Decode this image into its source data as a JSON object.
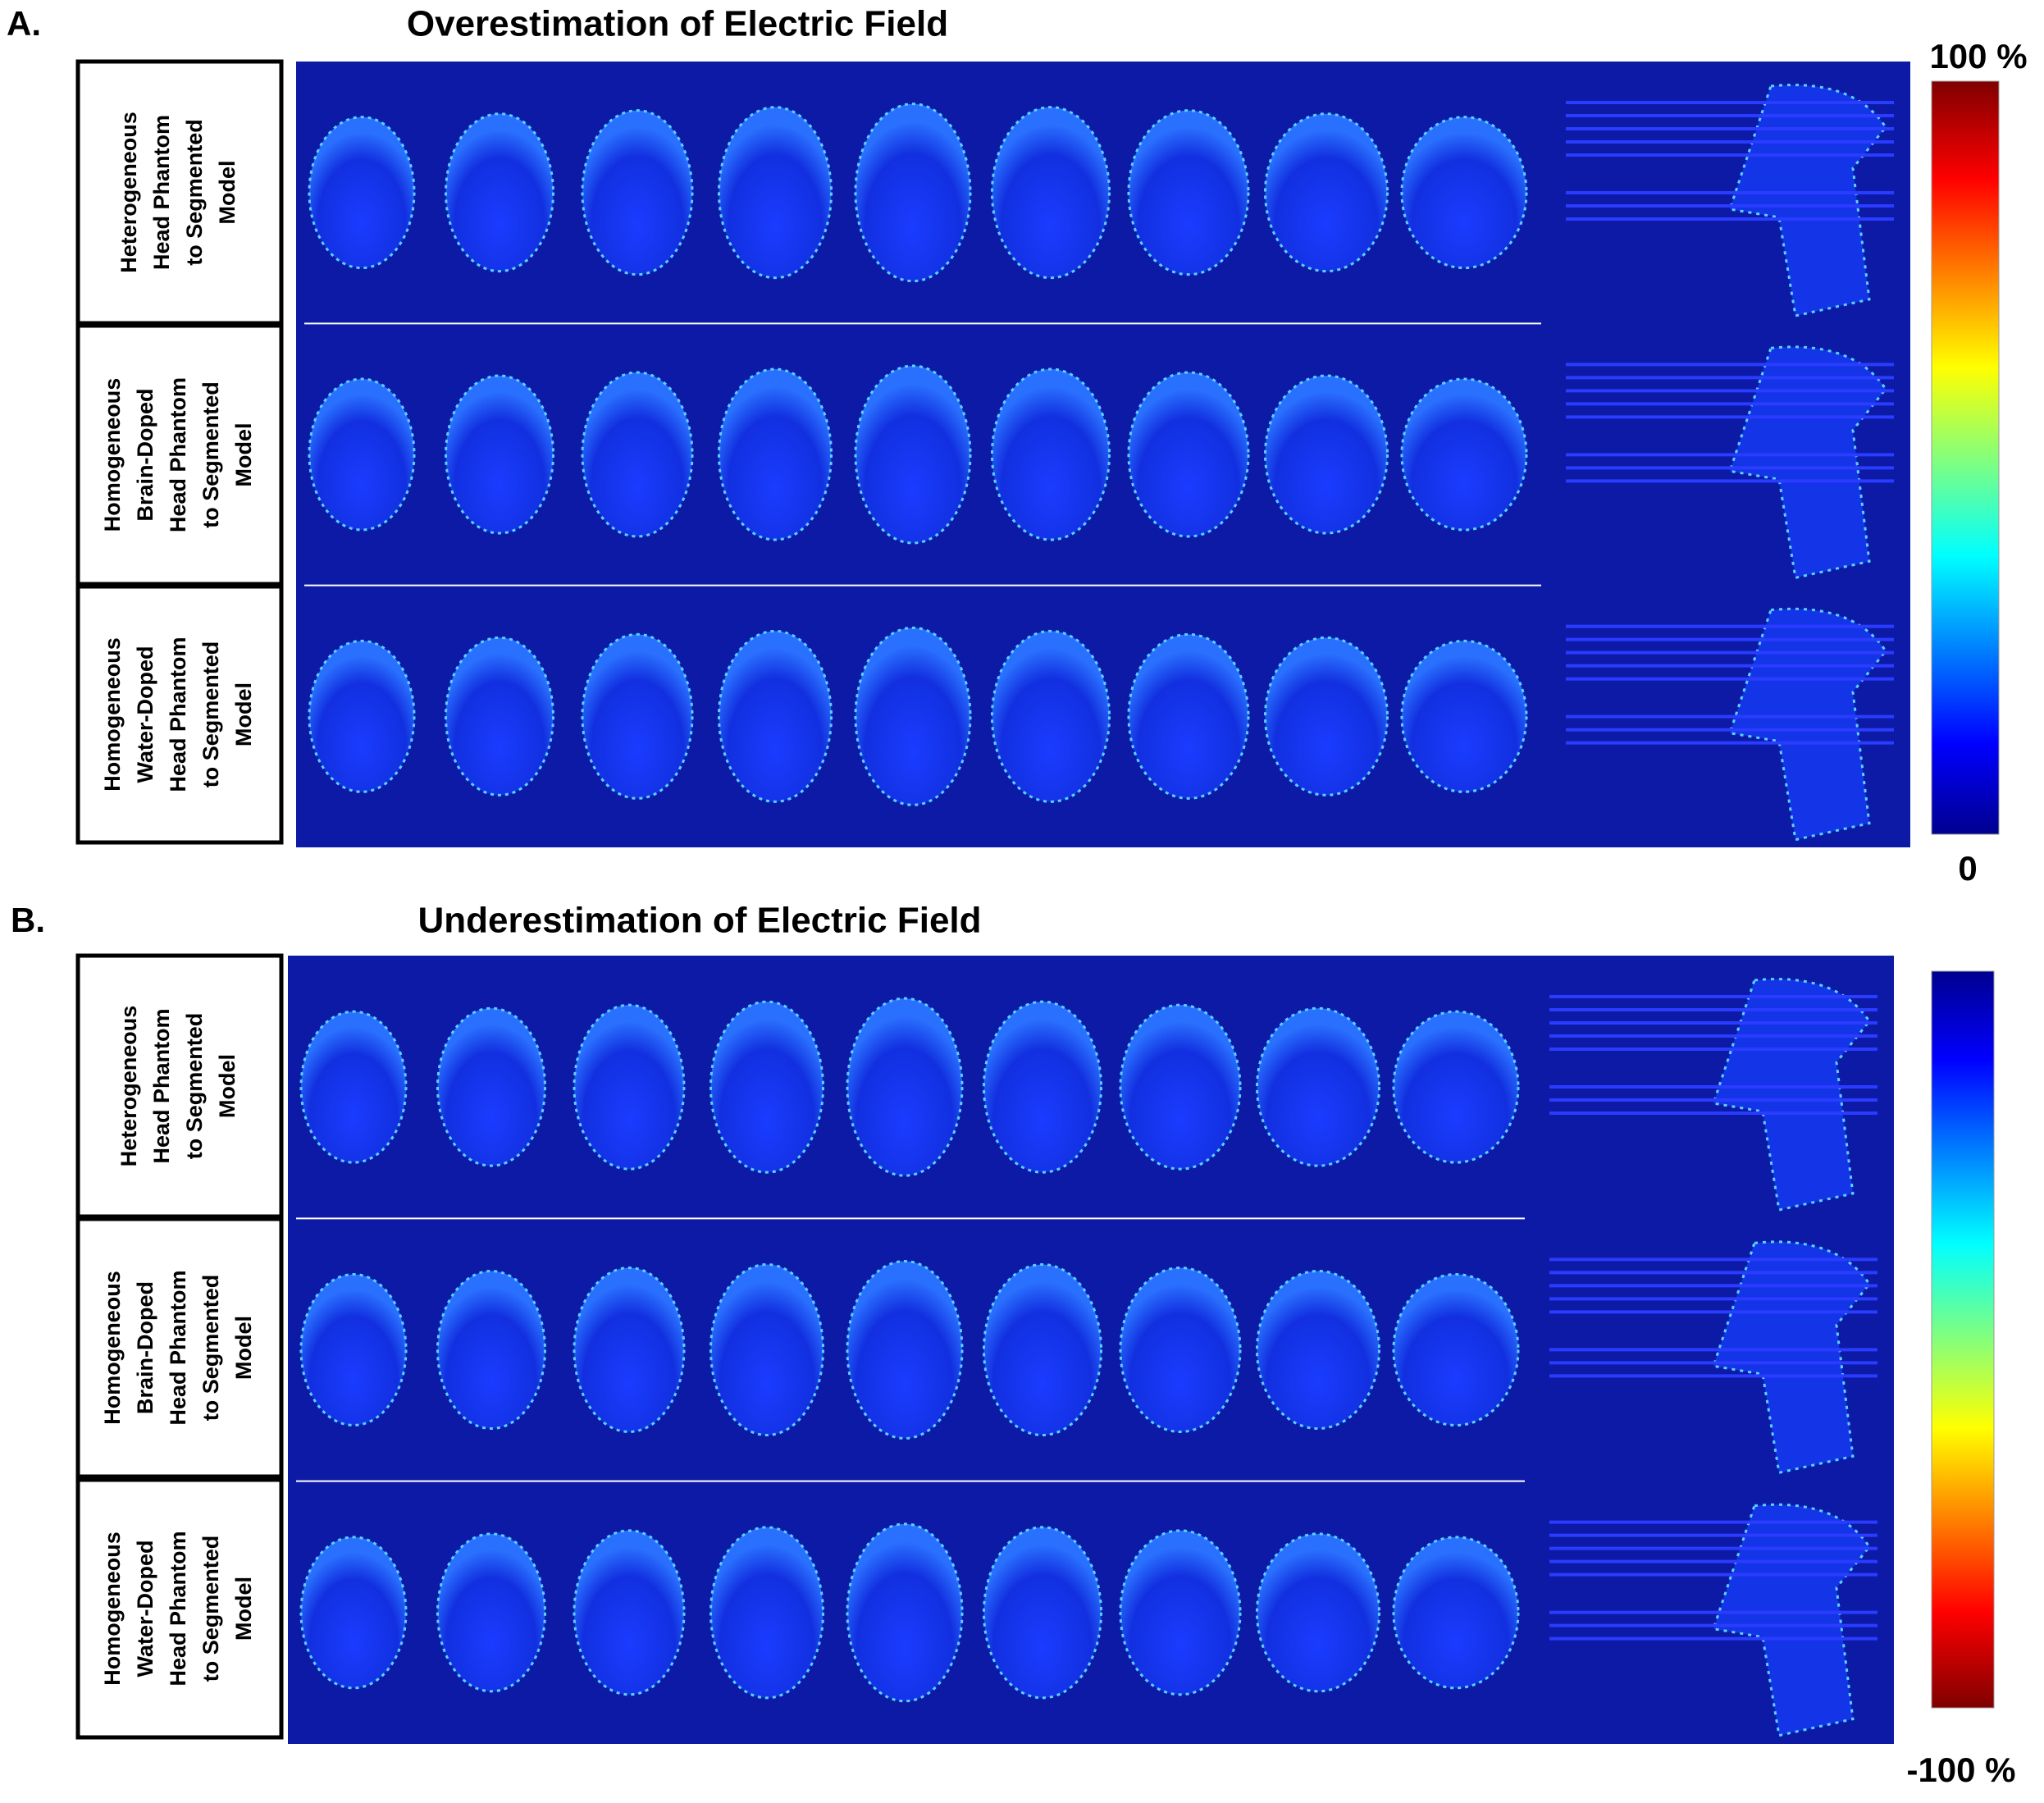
{
  "panels": [
    {
      "label": "A.",
      "title": "Overestimation of Electric Field",
      "rows": [
        {
          "lines": [
            "Heterogeneous",
            "Head Phantom",
            "to Segmented",
            "Model"
          ]
        },
        {
          "lines": [
            "Homogeneous",
            "Brain-Doped",
            "Head Phantom",
            "to Segmented",
            "Model"
          ]
        },
        {
          "lines": [
            "Homogeneous",
            "Water-Doped",
            "Head Phantom",
            "to Segmented",
            "Model"
          ]
        }
      ],
      "colorbar": {
        "top": "100 %",
        "bottom": "0"
      }
    },
    {
      "label": "B.",
      "title": "Underestimation of Electric Field",
      "rows": [
        {
          "lines": [
            "Heterogeneous",
            "Head Phantom",
            "to Segmented",
            "Model"
          ]
        },
        {
          "lines": [
            "Homogeneous",
            "Brain-Doped",
            "Head Phantom",
            "to Segmented",
            "Model"
          ]
        },
        {
          "lines": [
            "Homogeneous",
            "Water-Doped",
            "Head Phantom",
            "to Segmented",
            "Model"
          ]
        }
      ],
      "colorbar": {
        "bottom": "-100 %"
      }
    }
  ]
}
